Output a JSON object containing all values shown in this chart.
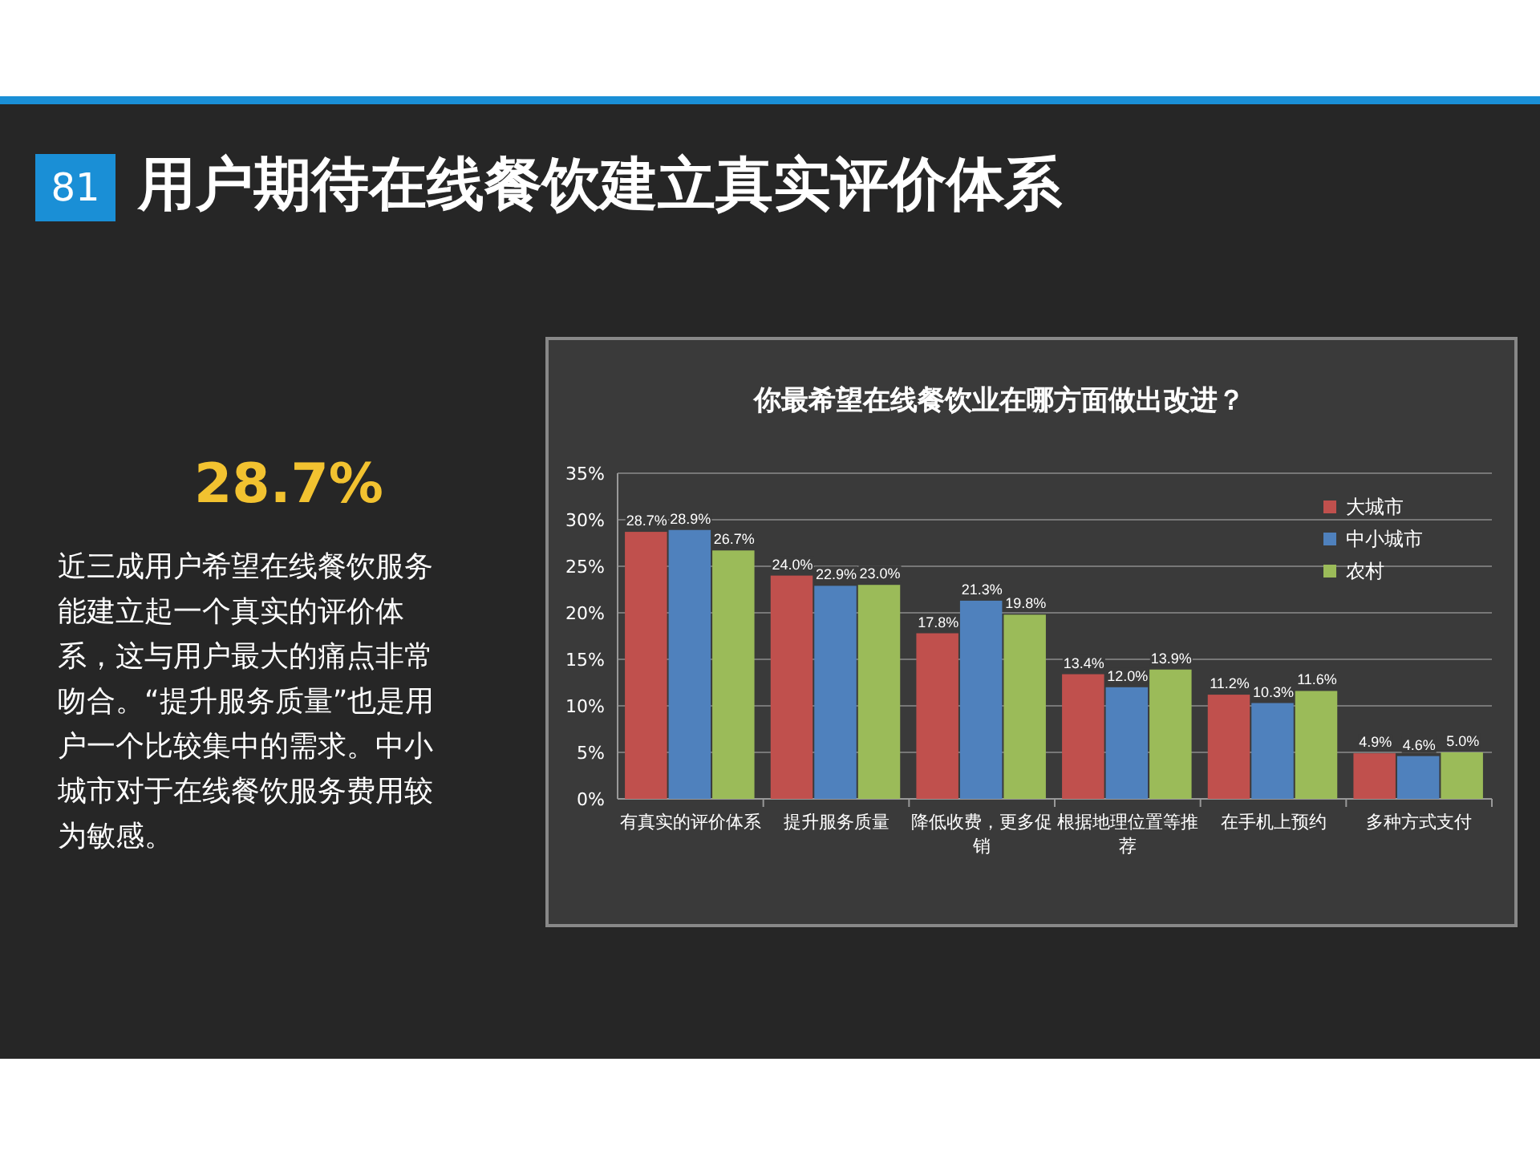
{
  "chart_data": {
    "type": "bar",
    "title": "你最希望在线餐饮业在哪方面做出改进？",
    "categories": [
      "有真实的评价体系",
      "提升服务质量",
      "降低收费，更多促销",
      "根据地理位置等推荐",
      "在手机上预约",
      "多种方式支付"
    ],
    "series": [
      {
        "name": "大城市",
        "color": "#c0504d",
        "values": [
          28.7,
          24.0,
          17.8,
          13.4,
          11.2,
          4.9
        ],
        "value_labels": [
          "28.7%",
          "24.0%",
          "17.8%",
          "13.4%",
          "11.2%",
          "4.9%"
        ]
      },
      {
        "name": "中小城市",
        "color": "#4f81bd",
        "values": [
          28.9,
          22.9,
          21.3,
          12.0,
          10.3,
          4.6
        ],
        "value_labels": [
          "28.9%",
          "22.9%",
          "21.3%",
          "12.0%",
          "10.3%",
          "4.6%"
        ]
      },
      {
        "name": "农村",
        "color": "#9bbb59",
        "values": [
          26.7,
          23.0,
          19.8,
          13.9,
          11.6,
          5.0
        ],
        "value_labels": [
          "26.7%",
          "23.0%",
          "19.8%",
          "13.9%",
          "11.6%",
          "5.0%"
        ]
      }
    ],
    "ylim": [
      0,
      35
    ],
    "yticks": [
      {
        "value": 0,
        "label": "0%"
      },
      {
        "value": 5,
        "label": "5%"
      },
      {
        "value": 10,
        "label": "10%"
      },
      {
        "value": 15,
        "label": "15%"
      },
      {
        "value": 20,
        "label": "20%"
      },
      {
        "value": 25,
        "label": "25%"
      },
      {
        "value": 30,
        "label": "30%"
      },
      {
        "value": 35,
        "label": "35%"
      }
    ],
    "grid": "y",
    "legend": "top right",
    "annotations": [
      "81",
      "用户期待在线餐饮建立真实评价体系",
      "28.7%",
      "近三成用户希望在线餐饮服务能建立起一个真实的评价体系，这与用户最大的痛点非常吻合。“提升服务质量”也是用户一个比较集中的需求。中小城市对于在线餐饮服务费用较为敏感。"
    ]
  }
}
